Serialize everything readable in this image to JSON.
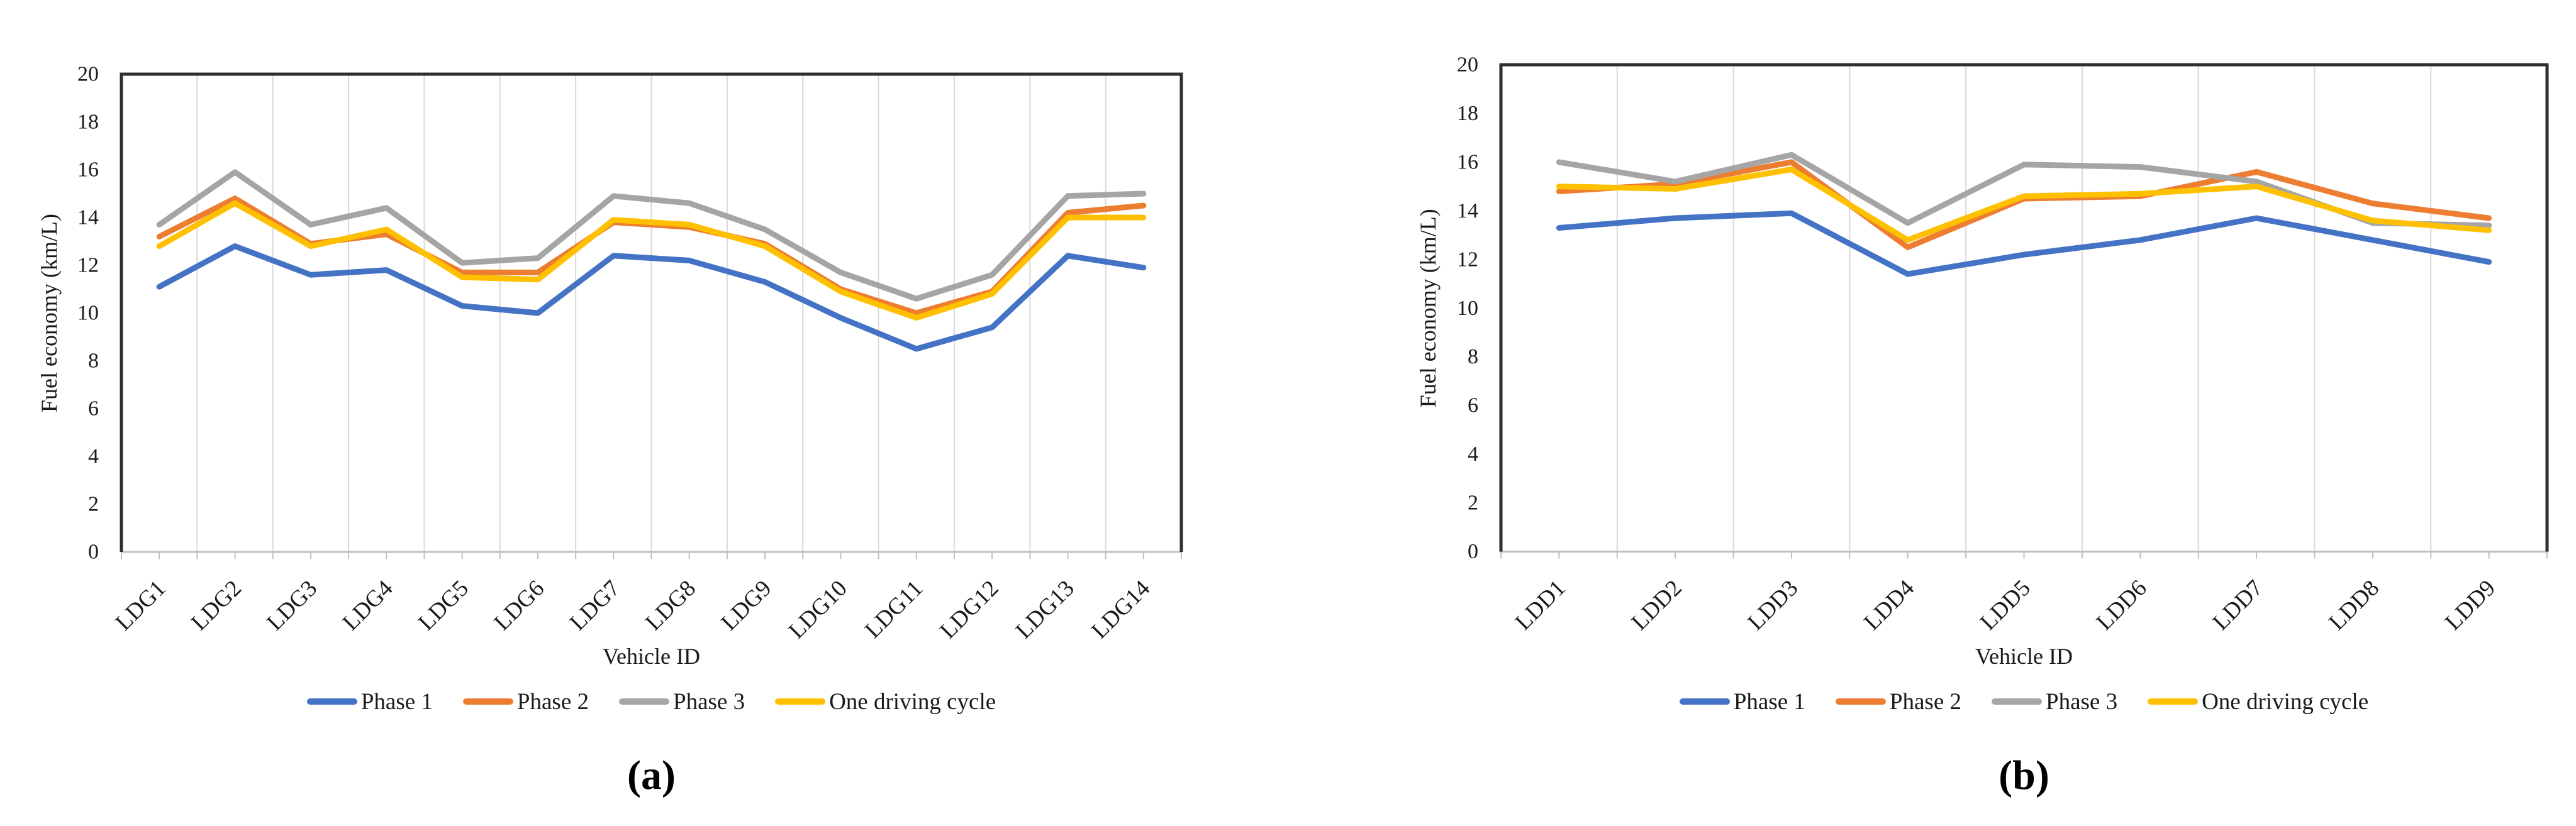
{
  "figure": {
    "background": "#ffffff",
    "text_color": "#1a1a1a",
    "gridline_color": "#D9D9D9",
    "axis_border_color": "#2e2e2e",
    "category_axis_color": "#BFBFBF"
  },
  "chart_data": [
    {
      "type": "line",
      "panel": "a",
      "caption": "(a)",
      "xlabel": "Vehicle ID",
      "ylabel": "Fuel economy (km/L)",
      "ylim": [
        0,
        20
      ],
      "ytick_step": 2,
      "grid": "vertical-only",
      "legend_position": "bottom",
      "categories": [
        "LDG1",
        "LDG2",
        "LDG3",
        "LDG4",
        "LDG5",
        "LDG6",
        "LDG7",
        "LDG8",
        "LDG9",
        "LDG10",
        "LDG11",
        "LDG12",
        "LDG13",
        "LDG14"
      ],
      "series": [
        {
          "name": "Phase 1",
          "color": "#4472C4",
          "values": [
            11.1,
            12.8,
            11.6,
            11.8,
            10.3,
            10.0,
            12.4,
            12.2,
            11.3,
            9.8,
            8.5,
            9.4,
            12.4,
            11.9
          ]
        },
        {
          "name": "Phase 2",
          "color": "#ED7D31",
          "values": [
            13.2,
            14.8,
            12.9,
            13.3,
            11.7,
            11.7,
            13.8,
            13.6,
            12.9,
            11.0,
            10.0,
            10.9,
            14.2,
            14.5
          ]
        },
        {
          "name": "Phase 3",
          "color": "#A5A5A5",
          "values": [
            13.7,
            15.9,
            13.7,
            14.4,
            12.1,
            12.3,
            14.9,
            14.6,
            13.5,
            11.7,
            10.6,
            11.6,
            14.9,
            15.0
          ]
        },
        {
          "name": "One driving cycle",
          "color": "#FFC000",
          "values": [
            12.8,
            14.6,
            12.8,
            13.5,
            11.5,
            11.4,
            13.9,
            13.7,
            12.8,
            10.9,
            9.8,
            10.8,
            14.0,
            14.0
          ]
        }
      ]
    },
    {
      "type": "line",
      "panel": "b",
      "caption": "(b)",
      "xlabel": "Vehicle ID",
      "ylabel": "Fuel economy (km/L)",
      "ylim": [
        0,
        20
      ],
      "ytick_step": 2,
      "grid": "vertical-only",
      "legend_position": "bottom",
      "categories": [
        "LDD1",
        "LDD2",
        "LDD3",
        "LDD4",
        "LDD5",
        "LDD6",
        "LDD7",
        "LDD8",
        "LDD9"
      ],
      "series": [
        {
          "name": "Phase 1",
          "color": "#4472C4",
          "values": [
            13.3,
            13.7,
            13.9,
            11.4,
            12.2,
            12.8,
            13.7,
            12.8,
            11.9
          ]
        },
        {
          "name": "Phase 2",
          "color": "#ED7D31",
          "values": [
            14.8,
            15.1,
            16.0,
            12.5,
            14.5,
            14.6,
            15.6,
            14.3,
            13.7
          ]
        },
        {
          "name": "Phase 3",
          "color": "#A5A5A5",
          "values": [
            16.0,
            15.2,
            16.3,
            13.5,
            15.9,
            15.8,
            15.2,
            13.5,
            13.4
          ]
        },
        {
          "name": "One driving cycle",
          "color": "#FFC000",
          "values": [
            15.0,
            14.9,
            15.7,
            12.8,
            14.6,
            14.7,
            15.0,
            13.6,
            13.2
          ]
        }
      ]
    }
  ]
}
